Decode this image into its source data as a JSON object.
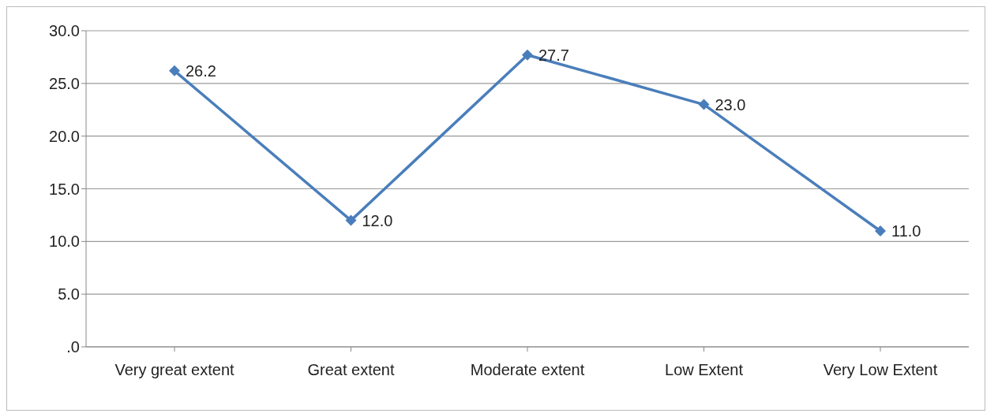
{
  "chart_data": {
    "type": "line",
    "categories": [
      "Very great extent",
      "Great extent",
      "Moderate extent",
      "Low Extent",
      "Very Low Extent"
    ],
    "series": [
      {
        "color": "#4a7ebb",
        "values": [
          26.2,
          12.0,
          27.7,
          23.0,
          11.0
        ],
        "value_labels": [
          "26.2",
          "12.0",
          "27.7",
          "23.0",
          "11.0"
        ]
      }
    ],
    "ylim": [
      0,
      30
    ],
    "yticks": [
      {
        "value": 0,
        "label": ".0"
      },
      {
        "value": 5,
        "label": "5.0"
      },
      {
        "value": 10,
        "label": "10.0"
      },
      {
        "value": 15,
        "label": "15.0"
      },
      {
        "value": 20,
        "label": "20.0"
      },
      {
        "value": 25,
        "label": "25.0"
      },
      {
        "value": 30,
        "label": "30.0"
      }
    ],
    "grid": "y",
    "legend": false,
    "marker": "diamond",
    "line_style": "solid"
  }
}
